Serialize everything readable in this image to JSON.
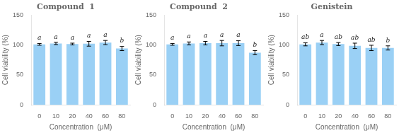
{
  "chart_data": [
    {
      "type": "bar",
      "title": "Compound  1",
      "categories": [
        "0",
        "10",
        "20",
        "40",
        "60",
        "80"
      ],
      "values": [
        101,
        102.5,
        101.5,
        102,
        104,
        94
      ],
      "errors": [
        1.5,
        2.0,
        1.5,
        4.0,
        3.5,
        3.5
      ],
      "annotations": [
        "a",
        "a",
        "a",
        "a",
        "a",
        "b"
      ],
      "xlabel": "Concentration  (μM)",
      "ylabel": "Cell viability (%)",
      "ylim": [
        0,
        150
      ],
      "yticks": [
        0,
        50,
        100,
        150
      ],
      "grid": false
    },
    {
      "type": "bar",
      "title": "Compound  2",
      "categories": [
        "0",
        "10",
        "20",
        "40",
        "60",
        "80"
      ],
      "values": [
        101,
        102.5,
        103,
        103,
        103,
        87
      ],
      "errors": [
        1.5,
        2.5,
        3.0,
        4.5,
        4.0,
        3.5
      ],
      "annotations": [
        "a",
        "a",
        "a",
        "a",
        "a",
        "b"
      ],
      "xlabel": "Concentration  (μM)",
      "ylabel": "Cell viability (%)",
      "ylim": [
        0,
        150
      ],
      "yticks": [
        0,
        50,
        100,
        150
      ],
      "grid": false
    },
    {
      "type": "bar",
      "title": "Genistein",
      "categories": [
        "0",
        "10",
        "20",
        "40",
        "60",
        "80"
      ],
      "values": [
        101,
        104,
        101.5,
        98.5,
        95,
        95
      ],
      "errors": [
        2.5,
        3.5,
        2.5,
        4.5,
        4.5,
        3.5
      ],
      "annotations": [
        "ab",
        "a",
        "ab",
        "ab",
        "ab",
        "b"
      ],
      "xlabel": "Concentration  (μM)",
      "ylabel": "Cell viability (%)",
      "ylim": [
        0,
        150
      ],
      "yticks": [
        0,
        50,
        100,
        150
      ],
      "grid": false
    }
  ]
}
